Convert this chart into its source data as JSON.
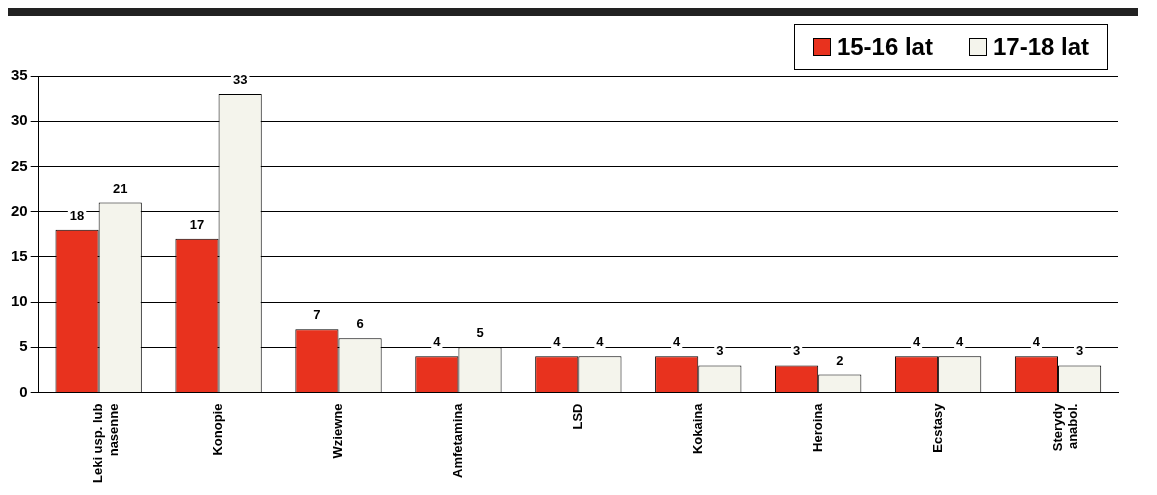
{
  "chart_data": {
    "type": "bar",
    "categories": [
      "Leki usp. lub nasenne",
      "Konopie",
      "Wziewne",
      "Amfetamina",
      "LSD",
      "Kokaina",
      "Heroina",
      "Ecstasy",
      "Sterydy anabol."
    ],
    "series": [
      {
        "name": "15-16 lat",
        "color": "#e8321e",
        "values": [
          18,
          17,
          7,
          4,
          4,
          4,
          3,
          4,
          4
        ]
      },
      {
        "name": "17-18 lat",
        "color": "#f4f4ec",
        "values": [
          21,
          33,
          6,
          5,
          4,
          3,
          2,
          4,
          3
        ]
      }
    ],
    "data_labels": true,
    "ylim": [
      0,
      35
    ],
    "yticks": [
      0,
      5,
      10,
      15,
      20,
      25,
      30,
      35
    ],
    "grid": "y",
    "legend": "top right"
  }
}
